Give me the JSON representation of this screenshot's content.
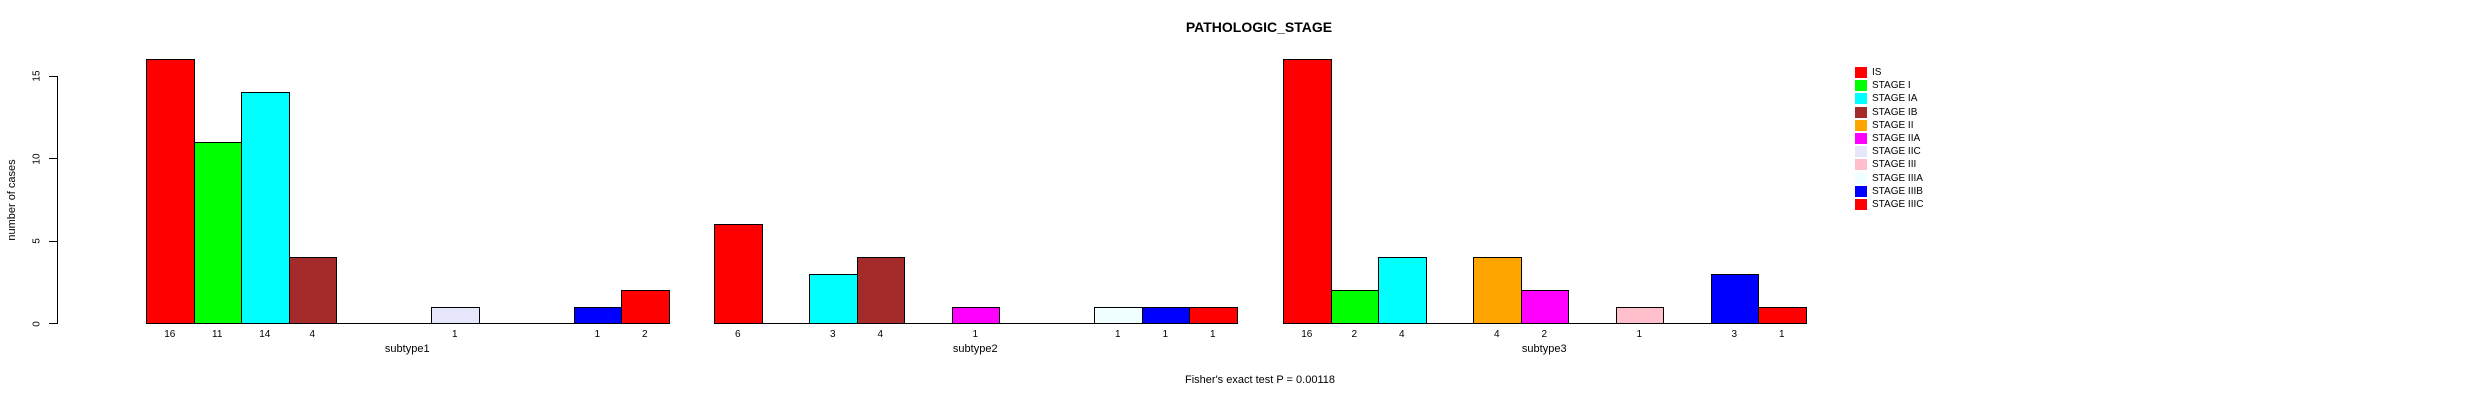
{
  "chart_data": {
    "type": "bar",
    "title": "PATHOLOGIC_STAGE",
    "ylabel": "number of cases",
    "yticks": [
      0,
      5,
      10,
      15
    ],
    "ylim": [
      0,
      16
    ],
    "grid": false,
    "legend_position": "right",
    "categories": [
      "IS",
      "STAGE I",
      "STAGE IA",
      "STAGE IB",
      "STAGE II",
      "STAGE IIA",
      "STAGE IIC",
      "STAGE III",
      "STAGE IIIA",
      "STAGE IIIB",
      "STAGE IIIC"
    ],
    "colors": [
      "#FF0000",
      "#00FF00",
      "#00FFFF",
      "#A52A2A",
      "#FFA500",
      "#FF00FF",
      "#E6E6FA",
      "#FFC0CB",
      "#F0FFFF",
      "#0000FF",
      "#FF0000"
    ],
    "groups": [
      {
        "label": "subtype1",
        "values": [
          16,
          11,
          14,
          4,
          0,
          0,
          1,
          0,
          0,
          1,
          2
        ]
      },
      {
        "label": "subtype2",
        "values": [
          6,
          0,
          3,
          4,
          0,
          1,
          0,
          0,
          1,
          1,
          1
        ]
      },
      {
        "label": "subtype3",
        "values": [
          16,
          2,
          4,
          0,
          4,
          2,
          0,
          1,
          0,
          3,
          1
        ]
      }
    ],
    "bar_value_labels_shown": true,
    "annotation": "Fisher's exact test P = 0.00118"
  }
}
